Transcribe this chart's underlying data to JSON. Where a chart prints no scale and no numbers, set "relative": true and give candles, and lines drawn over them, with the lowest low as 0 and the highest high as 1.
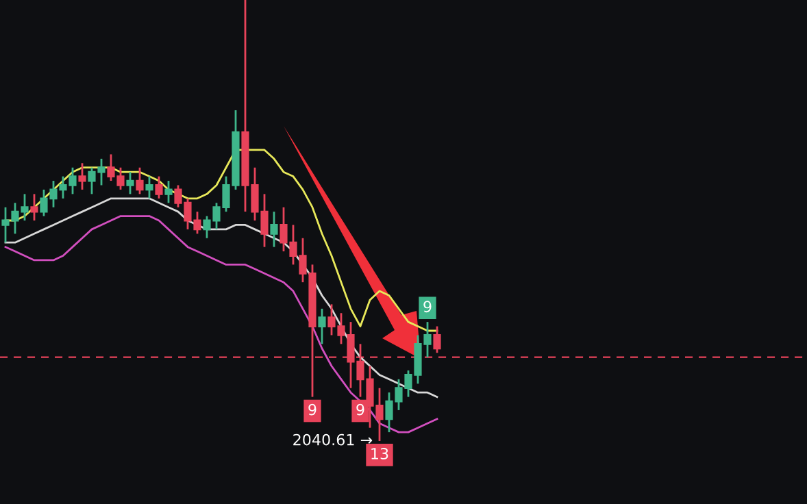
{
  "chart_data": {
    "type": "candlestick",
    "relative": true,
    "categories": [
      null,
      null,
      null,
      null,
      null,
      null,
      null,
      null,
      null,
      null,
      null,
      null,
      null,
      null,
      null,
      null,
      null,
      null,
      null,
      null,
      null,
      null,
      null,
      null,
      null,
      null,
      null,
      null,
      null,
      null,
      null,
      null,
      null,
      null,
      null,
      null,
      null,
      null,
      null,
      null,
      null,
      null,
      null,
      null,
      null,
      null
    ],
    "ohlc": [
      [
        0.49,
        0.53,
        0.45,
        0.5
      ],
      [
        0.5,
        0.54,
        0.47,
        0.52
      ],
      [
        0.52,
        0.56,
        0.5,
        0.53
      ],
      [
        0.53,
        0.56,
        0.5,
        0.52
      ],
      [
        0.52,
        0.57,
        0.51,
        0.55
      ],
      [
        0.55,
        0.59,
        0.53,
        0.57
      ],
      [
        0.57,
        0.6,
        0.55,
        0.58
      ],
      [
        0.58,
        0.62,
        0.56,
        0.6
      ],
      [
        0.6,
        0.63,
        0.57,
        0.59
      ],
      [
        0.59,
        0.62,
        0.56,
        0.61
      ],
      [
        0.61,
        0.64,
        0.58,
        0.62
      ],
      [
        0.62,
        0.65,
        0.59,
        0.6
      ],
      [
        0.6,
        0.62,
        0.57,
        0.58
      ],
      [
        0.58,
        0.61,
        0.56,
        0.59
      ],
      [
        0.59,
        0.62,
        0.56,
        0.57
      ],
      [
        0.57,
        0.6,
        0.55,
        0.58
      ],
      [
        0.58,
        0.6,
        0.55,
        0.56
      ],
      [
        0.56,
        0.59,
        0.54,
        0.57
      ],
      [
        0.57,
        0.58,
        0.53,
        0.54
      ],
      [
        0.54,
        0.55,
        0.48,
        0.5
      ],
      [
        0.5,
        0.52,
        0.47,
        0.48
      ],
      [
        0.48,
        0.51,
        0.46,
        0.5
      ],
      [
        0.5,
        0.54,
        0.48,
        0.53
      ],
      [
        0.53,
        0.6,
        0.52,
        0.58
      ],
      [
        0.58,
        0.75,
        0.57,
        0.7
      ],
      [
        0.7,
        1.0,
        0.52,
        0.58
      ],
      [
        0.58,
        0.62,
        0.5,
        0.52
      ],
      [
        0.52,
        0.56,
        0.44,
        0.47
      ],
      [
        0.47,
        0.52,
        0.44,
        0.49
      ],
      [
        0.49,
        0.53,
        0.43,
        0.45
      ],
      [
        0.45,
        0.49,
        0.4,
        0.42
      ],
      [
        0.42,
        0.46,
        0.36,
        0.38
      ],
      [
        0.38,
        0.4,
        0.1,
        0.26
      ],
      [
        0.26,
        0.3,
        0.22,
        0.28
      ],
      [
        0.28,
        0.31,
        0.24,
        0.26
      ],
      [
        0.26,
        0.29,
        0.22,
        0.24
      ],
      [
        0.24,
        0.27,
        0.12,
        0.18
      ],
      [
        0.18,
        0.22,
        0.1,
        0.14
      ],
      [
        0.14,
        0.17,
        0.03,
        0.08
      ],
      [
        0.08,
        0.12,
        0.0,
        0.05
      ],
      [
        0.05,
        0.11,
        0.02,
        0.09
      ],
      [
        0.09,
        0.14,
        0.07,
        0.12
      ],
      [
        0.12,
        0.16,
        0.1,
        0.15
      ],
      [
        0.15,
        0.24,
        0.13,
        0.22
      ],
      [
        0.22,
        0.27,
        0.19,
        0.24
      ],
      [
        0.24,
        0.26,
        0.2,
        0.21
      ]
    ],
    "series": [
      {
        "type": "line",
        "color": "#e8e85a",
        "values": [
          0.5,
          0.5,
          0.51,
          0.53,
          0.55,
          0.57,
          0.59,
          0.61,
          0.62,
          0.62,
          0.62,
          0.62,
          0.61,
          0.61,
          0.61,
          0.6,
          0.59,
          0.57,
          0.56,
          0.55,
          0.55,
          0.56,
          0.58,
          0.62,
          0.66,
          0.66,
          0.66,
          0.66,
          0.64,
          0.61,
          0.6,
          0.57,
          0.53,
          0.47,
          0.42,
          0.36,
          0.3,
          0.26,
          0.32,
          0.34,
          0.33,
          0.3,
          0.27,
          0.26,
          0.25,
          0.25
        ]
      },
      {
        "type": "line",
        "color": "#d8d8d8",
        "values": [
          0.45,
          0.45,
          0.46,
          0.47,
          0.48,
          0.49,
          0.5,
          0.51,
          0.52,
          0.53,
          0.54,
          0.55,
          0.55,
          0.55,
          0.55,
          0.55,
          0.54,
          0.53,
          0.52,
          0.5,
          0.49,
          0.48,
          0.48,
          0.48,
          0.49,
          0.49,
          0.48,
          0.47,
          0.46,
          0.45,
          0.43,
          0.4,
          0.37,
          0.33,
          0.3,
          0.26,
          0.22,
          0.19,
          0.17,
          0.15,
          0.14,
          0.13,
          0.12,
          0.11,
          0.11,
          0.1
        ]
      },
      {
        "type": "line",
        "color": "#d24fbf",
        "values": [
          0.44,
          0.43,
          0.42,
          0.41,
          0.41,
          0.41,
          0.42,
          0.44,
          0.46,
          0.48,
          0.49,
          0.5,
          0.51,
          0.51,
          0.51,
          0.51,
          0.5,
          0.48,
          0.46,
          0.44,
          0.43,
          0.42,
          0.41,
          0.4,
          0.4,
          0.4,
          0.39,
          0.38,
          0.37,
          0.36,
          0.34,
          0.3,
          0.26,
          0.21,
          0.17,
          0.14,
          0.11,
          0.09,
          0.07,
          0.04,
          0.03,
          0.02,
          0.02,
          0.03,
          0.04,
          0.05
        ]
      }
    ],
    "ref_lines": [
      {
        "axis": "y",
        "value": 0.19,
        "color": "#e8435a",
        "line_style": "dashed"
      }
    ],
    "annotations": [
      "9",
      "9",
      "13",
      "9",
      "2040.61 →"
    ]
  }
}
